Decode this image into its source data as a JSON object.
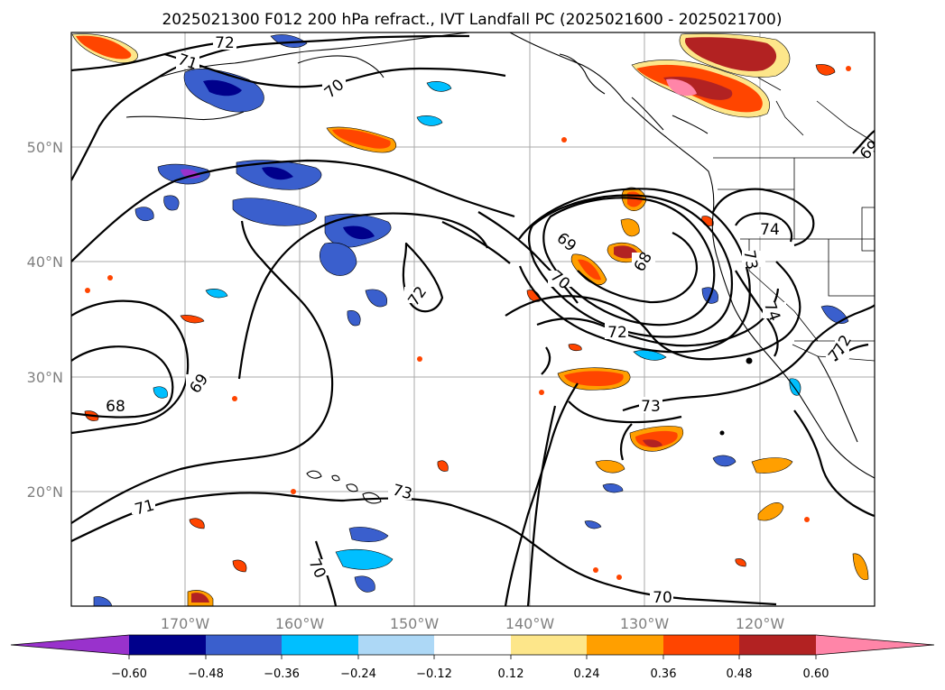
{
  "title": "2025021300 F012 200 hPa refract., IVT Landfall PC (2025021600 - 2025021700)",
  "lat_labels": [
    "50°N",
    "40°N",
    "30°N",
    "20°N"
  ],
  "lon_labels": [
    "170°W",
    "160°W",
    "150°W",
    "140°W",
    "130°W",
    "120°W"
  ],
  "contour_labels": [
    "72",
    "71",
    "70",
    "69",
    "72",
    "69",
    "70",
    "68",
    "72",
    "73",
    "74",
    "73",
    "74",
    "72",
    "68",
    "69",
    "73",
    "71",
    "70",
    "70",
    "72"
  ],
  "colorbar": {
    "ticks": [
      "−0.60",
      "−0.48",
      "−0.36",
      "−0.24",
      "−0.12",
      "0.12",
      "0.24",
      "0.36",
      "0.48",
      "0.60"
    ],
    "colors": [
      "#9932cc",
      "#00008b",
      "#3a5fcd",
      "#00bfff",
      "#add8f6",
      "#ffffff",
      "#fde68a",
      "#ff9f00",
      "#ff4500",
      "#b22222",
      "#ff85a8"
    ]
  },
  "shading_colors": {
    "neg_1": "#00008b",
    "neg_2": "#3a5fcd",
    "neg_3": "#00bfff",
    "neg_4": "#add8f6",
    "neg_5": "#9932cc",
    "pos_1": "#fde68a",
    "pos_2": "#ff9f00",
    "pos_3": "#ff4500",
    "pos_4": "#b22222",
    "pos_5": "#ff85a8"
  }
}
